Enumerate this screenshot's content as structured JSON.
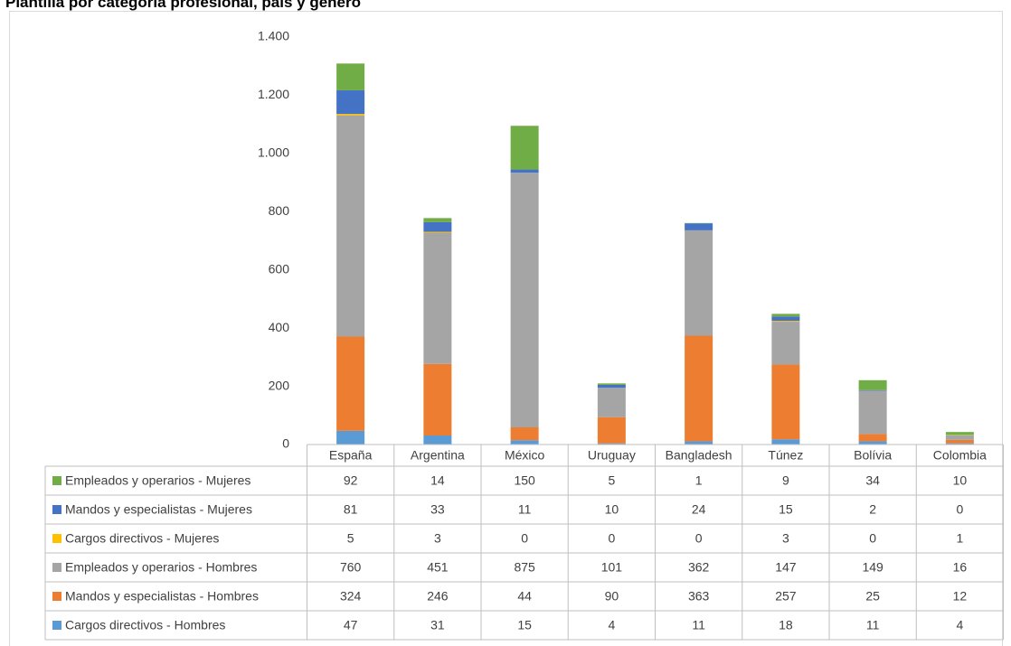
{
  "chart_data": {
    "type": "stacked-bar-table",
    "title": "Plantilla por categoría profesional, país y género",
    "categories": [
      "España",
      "Argentina",
      "México",
      "Uruguay",
      "Bangladesh",
      "Túnez",
      "Bolívia",
      "Colombia"
    ],
    "series": [
      {
        "name": "Cargos directivos - Hombres",
        "color": "#5b9bd5",
        "values": [
          47,
          31,
          15,
          4,
          11,
          18,
          11,
          4
        ]
      },
      {
        "name": "Mandos y especialistas - Hombres",
        "color": "#ed7d31",
        "values": [
          324,
          246,
          44,
          90,
          363,
          257,
          25,
          12
        ]
      },
      {
        "name": "Empleados y operarios - Hombres",
        "color": "#a5a5a5",
        "values": [
          760,
          451,
          875,
          101,
          362,
          147,
          149,
          16
        ]
      },
      {
        "name": "Cargos directivos - Mujeres",
        "color": "#ffc000",
        "values": [
          5,
          3,
          0,
          0,
          0,
          3,
          0,
          1
        ]
      },
      {
        "name": "Mandos y especialistas - Mujeres",
        "color": "#4472c4",
        "values": [
          81,
          33,
          11,
          10,
          24,
          15,
          2,
          0
        ]
      },
      {
        "name": "Empleados y operarios - Mujeres",
        "color": "#70ad47",
        "values": [
          92,
          14,
          150,
          5,
          1,
          9,
          34,
          10
        ]
      }
    ],
    "ylim": [
      0,
      1400
    ],
    "yticks": [
      0,
      200,
      400,
      600,
      800,
      {
        "value": 1000,
        "label": "1.000"
      },
      {
        "value": 1200,
        "label": "1.200"
      },
      {
        "value": 1400,
        "label": "1.400"
      }
    ],
    "grid": false
  }
}
